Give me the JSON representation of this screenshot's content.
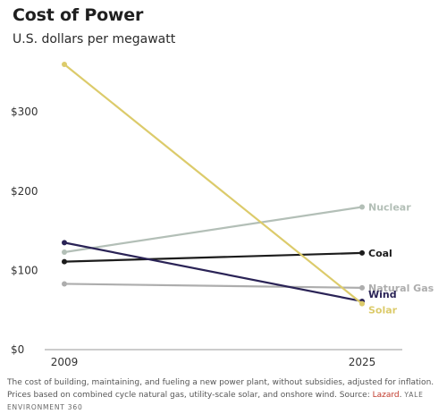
{
  "title": "Cost of Power",
  "subtitle": "U.S. dollars per megawatt",
  "chart_data": {
    "type": "line",
    "x": [
      "2009",
      "2025"
    ],
    "ylim": [
      0,
      360
    ],
    "yticks": [
      0,
      100,
      200,
      300
    ],
    "ytick_labels": [
      "$0",
      "$100",
      "$200",
      "$300"
    ],
    "grid": false,
    "series": [
      {
        "name": "Nuclear",
        "values": [
          123,
          180
        ],
        "color": "#b3bfb7"
      },
      {
        "name": "Coal",
        "values": [
          111,
          122
        ],
        "color": "#1c1c1c"
      },
      {
        "name": "Natural Gas",
        "values": [
          83,
          78
        ],
        "color": "#adadad"
      },
      {
        "name": "Wind",
        "values": [
          135,
          61
        ],
        "color": "#2a2356"
      },
      {
        "name": "Solar",
        "values": [
          360,
          58
        ],
        "color": "#dccb6b"
      }
    ]
  },
  "footnote": {
    "text": "The cost of building, maintaining, and fueling a new power plant, without subsidies, adjusted for inflation. Prices based on combined cycle natural gas, utility-scale solar, and onshore wind. Source: ",
    "source": "Lazard",
    "brand": "YALE ENVIRONMENT 360"
  }
}
